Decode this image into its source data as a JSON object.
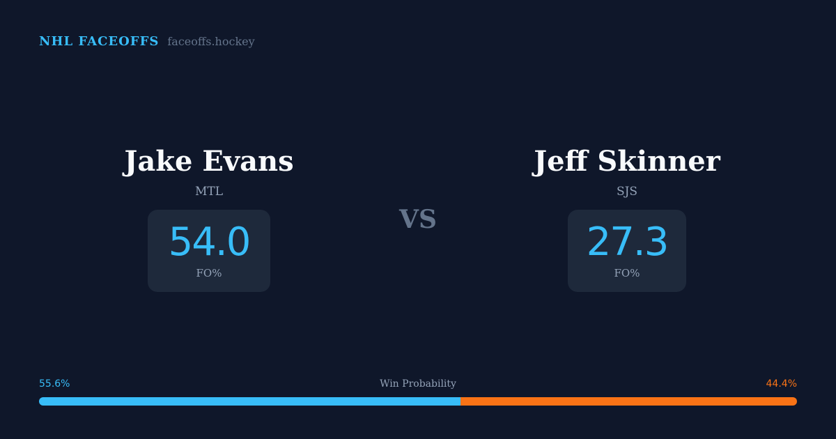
{
  "brand": {
    "name": "NHL FACEOFFS",
    "url": "faceoffs.hockey"
  },
  "players": [
    {
      "name": "Jake Evans",
      "team": "MTL",
      "value": "54.0",
      "unit": "FO%"
    },
    {
      "name": "Jeff Skinner",
      "team": "SJS",
      "value": "27.3",
      "unit": "FO%"
    }
  ],
  "vs": "VS",
  "win_probability": {
    "label": "Win Probability",
    "left": "55.6%",
    "right": "44.4%",
    "left_fraction": 0.556
  },
  "colors": {
    "background": "#0f172a",
    "accent_left": "#38bdf8",
    "accent_right": "#f97316",
    "card": "#1e293b"
  }
}
